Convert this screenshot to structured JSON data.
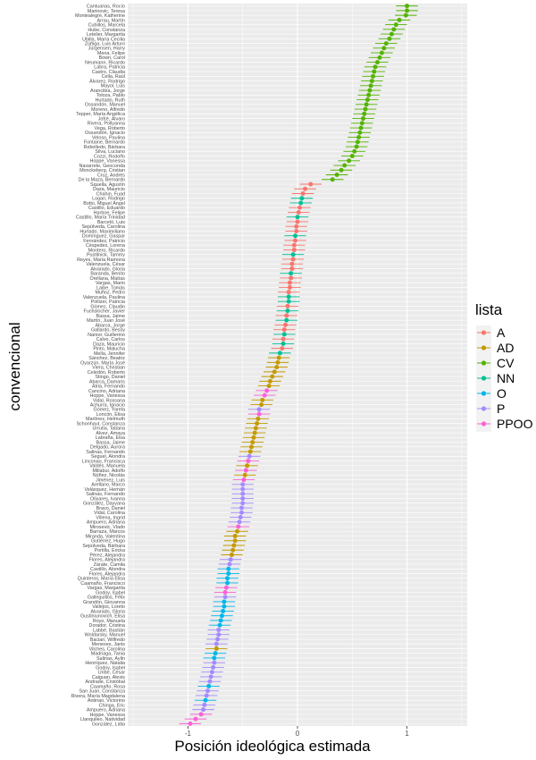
{
  "chart_data": {
    "type": "scatter",
    "xlabel": "Posición ideológica estimada",
    "ylabel": "convencional",
    "xlim": [
      -1.55,
      1.55
    ],
    "xticks": [
      -1,
      0,
      1
    ],
    "grid": true,
    "legend": {
      "title": "lista",
      "placement": "right"
    },
    "series": [
      {
        "name": "A",
        "color": "#F8766D"
      },
      {
        "name": "AD",
        "color": "#C49A00"
      },
      {
        "name": "CV",
        "color": "#53B400"
      },
      {
        "name": "NN",
        "color": "#00C094"
      },
      {
        "name": "O",
        "color": "#00B6EB"
      },
      {
        "name": "P",
        "color": "#A58AFF"
      },
      {
        "name": "PPOO",
        "color": "#FB61D7"
      }
    ],
    "points": [
      {
        "name": "Cantuarias, Rocío",
        "lista": "CV",
        "x": 1.0
      },
      {
        "name": "Marinovic, Teresa",
        "lista": "CV",
        "x": 1.0
      },
      {
        "name": "Montealegre, Katherine",
        "lista": "CV",
        "x": 0.99
      },
      {
        "name": "Arrau, Martín",
        "lista": "CV",
        "x": 0.93
      },
      {
        "name": "Cubillos, Marcela",
        "lista": "CV",
        "x": 0.9
      },
      {
        "name": "Hube, Constanza",
        "lista": "CV",
        "x": 0.88
      },
      {
        "name": "Letelier, Margarita",
        "lista": "CV",
        "x": 0.86
      },
      {
        "name": "Ubilla, María Cecilia",
        "lista": "CV",
        "x": 0.84
      },
      {
        "name": "Zúñiga, Luis Arturo",
        "lista": "CV",
        "x": 0.81
      },
      {
        "name": "Jürgensen, Harry",
        "lista": "CV",
        "x": 0.79
      },
      {
        "name": "Mena, Felipe",
        "lista": "CV",
        "x": 0.77
      },
      {
        "name": "Bown, Carol",
        "lista": "CV",
        "x": 0.75
      },
      {
        "name": "Neumann, Ricardo",
        "lista": "CV",
        "x": 0.73
      },
      {
        "name": "Labra, Patricia",
        "lista": "CV",
        "x": 0.71
      },
      {
        "name": "Castro, Claudia",
        "lista": "CV",
        "x": 0.7
      },
      {
        "name": "Cella, Raúl",
        "lista": "CV",
        "x": 0.69
      },
      {
        "name": "Álvarez, Rodrigo",
        "lista": "CV",
        "x": 0.68
      },
      {
        "name": "Mayol, Luis",
        "lista": "CV",
        "x": 0.67
      },
      {
        "name": "Arancibia, Jorge",
        "lista": "CV",
        "x": 0.66
      },
      {
        "name": "Toloza, Pablo",
        "lista": "CV",
        "x": 0.65
      },
      {
        "name": "Hurtado, Ruth",
        "lista": "CV",
        "x": 0.64
      },
      {
        "name": "Ossandón, Manuel",
        "lista": "CV",
        "x": 0.63
      },
      {
        "name": "Moreno, Alfredo",
        "lista": "CV",
        "x": 0.62
      },
      {
        "name": "Tepper, María Angélica",
        "lista": "CV",
        "x": 0.61
      },
      {
        "name": "Jofré, Álvaro",
        "lista": "CV",
        "x": 0.6
      },
      {
        "name": "Rivera, Pollyanna",
        "lista": "CV",
        "x": 0.59
      },
      {
        "name": "Vega, Roberto",
        "lista": "CV",
        "x": 0.58
      },
      {
        "name": "Ossandón, Ignacio",
        "lista": "CV",
        "x": 0.57
      },
      {
        "name": "Veloso, Paulina",
        "lista": "CV",
        "x": 0.56
      },
      {
        "name": "Fontaine, Bernardo",
        "lista": "CV",
        "x": 0.55
      },
      {
        "name": "Rebolledo, Bárbara",
        "lista": "CV",
        "x": 0.54
      },
      {
        "name": "Silva, Luciano",
        "lista": "CV",
        "x": 0.52
      },
      {
        "name": "Cozzi, Rodolfo",
        "lista": "CV",
        "x": 0.5
      },
      {
        "name": "Hoppe, Vanessa",
        "lista": "CV",
        "x": 0.47
      },
      {
        "name": "Navarrete, Geoconda",
        "lista": "CV",
        "x": 0.43
      },
      {
        "name": "Monckeberg, Cristian",
        "lista": "CV",
        "x": 0.4
      },
      {
        "name": "Cruz, Andrés",
        "lista": "CV",
        "x": 0.36
      },
      {
        "name": "De la Maza, Bernardo",
        "lista": "CV",
        "x": 0.32
      },
      {
        "name": "Squella, Agustín",
        "lista": "A",
        "x": 0.12
      },
      {
        "name": "Daza, Mauricio",
        "lista": "A",
        "x": 0.07
      },
      {
        "name": "Chahin, Fuad",
        "lista": "A",
        "x": 0.05
      },
      {
        "name": "Logan, Rodrigo",
        "lista": "NN",
        "x": 0.04
      },
      {
        "name": "Botto, Miguel Ángel",
        "lista": "NN",
        "x": 0.03
      },
      {
        "name": "Castillo, Eduardo",
        "lista": "A",
        "x": 0.02
      },
      {
        "name": "Harboe, Felipe",
        "lista": "A",
        "x": 0.01
      },
      {
        "name": "Castillo, María Trinidad",
        "lista": "NN",
        "x": 0.0
      },
      {
        "name": "Barceló, Luis",
        "lista": "A",
        "x": 0.0
      },
      {
        "name": "Sepúlveda, Carolina",
        "lista": "A",
        "x": -0.01
      },
      {
        "name": "Hurtado, Maximiliano",
        "lista": "A",
        "x": -0.01
      },
      {
        "name": "Domínguez, Gaspar",
        "lista": "NN",
        "x": -0.02
      },
      {
        "name": "Fernández, Patricio",
        "lista": "A",
        "x": -0.02
      },
      {
        "name": "Céspedes, Lorena",
        "lista": "A",
        "x": -0.03
      },
      {
        "name": "Montero, Ricardo",
        "lista": "A",
        "x": -0.03
      },
      {
        "name": "Pustilnick, Tammy",
        "lista": "NN",
        "x": -0.04
      },
      {
        "name": "Reyes, María Ramona",
        "lista": "A",
        "x": -0.04
      },
      {
        "name": "Valenzuela, César",
        "lista": "A",
        "x": -0.05
      },
      {
        "name": "Alvarado, Gloria",
        "lista": "A",
        "x": -0.05
      },
      {
        "name": "Baranda, Benito",
        "lista": "NN",
        "x": -0.06
      },
      {
        "name": "Orellana, Matías",
        "lista": "A",
        "x": -0.06
      },
      {
        "name": "Vargas, Mario",
        "lista": "A",
        "x": -0.07
      },
      {
        "name": "Laibe, Tomás",
        "lista": "A",
        "x": -0.07
      },
      {
        "name": "Muñoz, Pedro",
        "lista": "A",
        "x": -0.08
      },
      {
        "name": "Valenzuela, Paulina",
        "lista": "NN",
        "x": -0.08
      },
      {
        "name": "Pollizer, Patricia",
        "lista": "NN",
        "x": -0.08
      },
      {
        "name": "Gómez, Claudio",
        "lista": "A",
        "x": -0.09
      },
      {
        "name": "Fuchslocher, Javier",
        "lista": "NN",
        "x": -0.09
      },
      {
        "name": "Bassa, Jaime",
        "lista": "A",
        "x": -0.1
      },
      {
        "name": "Martín, Juan José",
        "lista": "NN",
        "x": -0.1
      },
      {
        "name": "Abarca, Jorge",
        "lista": "A",
        "x": -0.11
      },
      {
        "name": "Gallardo, Bessy",
        "lista": "A",
        "x": -0.12
      },
      {
        "name": "Namor, Guillermo",
        "lista": "NN",
        "x": -0.12
      },
      {
        "name": "Calvo, Carlos",
        "lista": "A",
        "x": -0.13
      },
      {
        "name": "Daza, Mauricio",
        "lista": "NN",
        "x": -0.13
      },
      {
        "name": "Pinto, Malucha",
        "lista": "A",
        "x": -0.14
      },
      {
        "name": "Mella, Jennifer",
        "lista": "NN",
        "x": -0.16
      },
      {
        "name": "Sánchez, Beatriz",
        "lista": "AD",
        "x": -0.17
      },
      {
        "name": "Oyarzún, María José",
        "lista": "AD",
        "x": -0.18
      },
      {
        "name": "Viera, Christian",
        "lista": "AD",
        "x": -0.19
      },
      {
        "name": "Celedón, Roberto",
        "lista": "AD",
        "x": -0.21
      },
      {
        "name": "Stingo, Daniel",
        "lista": "AD",
        "x": -0.23
      },
      {
        "name": "Abarca, Damaris",
        "lista": "AD",
        "x": -0.25
      },
      {
        "name": "Atria, Fernando",
        "lista": "AD",
        "x": -0.26
      },
      {
        "name": "Cancino, Adriana",
        "lista": "PPOO",
        "x": -0.28
      },
      {
        "name": "Hoppe, Vanessa",
        "lista": "PPOO",
        "x": -0.3
      },
      {
        "name": "Vidal, Rossana",
        "lista": "AD",
        "x": -0.32
      },
      {
        "name": "Achurra, Ignacio",
        "lista": "AD",
        "x": -0.33
      },
      {
        "name": "Gómez, Yarela",
        "lista": "P",
        "x": -0.35
      },
      {
        "name": "Loncón, Elisa",
        "lista": "PPOO",
        "x": -0.35
      },
      {
        "name": "Martínez, Helmuth",
        "lista": "AD",
        "x": -0.36
      },
      {
        "name": "Schonhaut, Constanza",
        "lista": "AD",
        "x": -0.37
      },
      {
        "name": "Urrutia, Tatiana",
        "lista": "AD",
        "x": -0.38
      },
      {
        "name": "Alvez, Amaya",
        "lista": "AD",
        "x": -0.39
      },
      {
        "name": "Labraña, Elsa",
        "lista": "AD",
        "x": -0.4
      },
      {
        "name": "Bassa, Jaime",
        "lista": "AD",
        "x": -0.41
      },
      {
        "name": "Delgado, Aurora",
        "lista": "AD",
        "x": -0.42
      },
      {
        "name": "Salinas, Fernando",
        "lista": "AD",
        "x": -0.43
      },
      {
        "name": "Seguel, Alondra",
        "lista": "P",
        "x": -0.44
      },
      {
        "name": "Linconao, Francisca",
        "lista": "PPOO",
        "x": -0.45
      },
      {
        "name": "Valdés, Manuela",
        "lista": "AD",
        "x": -0.46
      },
      {
        "name": "Millabur, Adolfo",
        "lista": "PPOO",
        "x": -0.47
      },
      {
        "name": "Núñez, Nicolás",
        "lista": "AD",
        "x": -0.48
      },
      {
        "name": "Jiménez, Luis",
        "lista": "PPOO",
        "x": -0.49
      },
      {
        "name": "Arellano, Marco",
        "lista": "P",
        "x": -0.5
      },
      {
        "name": "Velásquez, Hernán",
        "lista": "P",
        "x": -0.5
      },
      {
        "name": "Salinas, Fernando",
        "lista": "P",
        "x": -0.5
      },
      {
        "name": "Olivares, Ivanna",
        "lista": "P",
        "x": -0.5
      },
      {
        "name": "González, Dayyana",
        "lista": "P",
        "x": -0.5
      },
      {
        "name": "Bravo, Daniel",
        "lista": "P",
        "x": -0.51
      },
      {
        "name": "Vidal, Carolina",
        "lista": "P",
        "x": -0.51
      },
      {
        "name": "Villena, Ingrid",
        "lista": "P",
        "x": -0.52
      },
      {
        "name": "Ampuero, Adriana",
        "lista": "P",
        "x": -0.53
      },
      {
        "name": "Mirosevic, Vlado",
        "lista": "PPOO",
        "x": -0.54
      },
      {
        "name": "Barraza, Marcos",
        "lista": "AD",
        "x": -0.55
      },
      {
        "name": "Miranda, Valentina",
        "lista": "AD",
        "x": -0.57
      },
      {
        "name": "Gutiérrez, Hugo",
        "lista": "AD",
        "x": -0.57
      },
      {
        "name": "Sepúlveda, Bárbara",
        "lista": "AD",
        "x": -0.58
      },
      {
        "name": "Portilla, Ericka",
        "lista": "AD",
        "x": -0.59
      },
      {
        "name": "Pérez, Alejandra",
        "lista": "AD",
        "x": -0.6
      },
      {
        "name": "Flores, Alejandra",
        "lista": "P",
        "x": -0.61
      },
      {
        "name": "Zárate, Camila",
        "lista": "P",
        "x": -0.62
      },
      {
        "name": "Castillo, Alondra",
        "lista": "O",
        "x": -0.63
      },
      {
        "name": "Flores, Alejandra",
        "lista": "O",
        "x": -0.63
      },
      {
        "name": "Quinteros, María Elisa",
        "lista": "O",
        "x": -0.64
      },
      {
        "name": "Caamaño, Francisco",
        "lista": "O",
        "x": -0.64
      },
      {
        "name": "Vargas, Margarita",
        "lista": "PPOO",
        "x": -0.65
      },
      {
        "name": "Godoy, Isabel",
        "lista": "PPOO",
        "x": -0.66
      },
      {
        "name": "Galleguillos, Félix",
        "lista": "P",
        "x": -0.66
      },
      {
        "name": "Grandón, Giovanna",
        "lista": "O",
        "x": -0.67
      },
      {
        "name": "Vallejos, Loreto",
        "lista": "O",
        "x": -0.67
      },
      {
        "name": "Alvarado, Gloria",
        "lista": "O",
        "x": -0.68
      },
      {
        "name": "Gustiniunovich, Elisa",
        "lista": "O",
        "x": -0.69
      },
      {
        "name": "Royo, Manuela",
        "lista": "O",
        "x": -0.7
      },
      {
        "name": "Dorador, Cristina",
        "lista": "O",
        "x": -0.71
      },
      {
        "name": "Labbé, Bastián",
        "lista": "P",
        "x": -0.72
      },
      {
        "name": "Woldarsky, Manuel",
        "lista": "P",
        "x": -0.72
      },
      {
        "name": "Bacian, Wilfredo",
        "lista": "P",
        "x": -0.73
      },
      {
        "name": "Meneses, Janis",
        "lista": "P",
        "x": -0.74
      },
      {
        "name": "Vilches, Carolina",
        "lista": "AD",
        "x": -0.74
      },
      {
        "name": "Madriaga, Tania",
        "lista": "O",
        "x": -0.75
      },
      {
        "name": "Salinas, Aylin",
        "lista": "O",
        "x": -0.76
      },
      {
        "name": "Henríquez, Natalia",
        "lista": "P",
        "x": -0.76
      },
      {
        "name": "Godoy, Isabel",
        "lista": "P",
        "x": -0.77
      },
      {
        "name": "Uribe, César",
        "lista": "P",
        "x": -0.78
      },
      {
        "name": "Caiguan, Alexis",
        "lista": "P",
        "x": -0.79
      },
      {
        "name": "Andrade, Cristóbal",
        "lista": "P",
        "x": -0.8
      },
      {
        "name": "Caamaño, Rosa",
        "lista": "O",
        "x": -0.81
      },
      {
        "name": "San Juan, Constanza",
        "lista": "P",
        "x": -0.82
      },
      {
        "name": "Rivera, María Magdalena",
        "lista": "P",
        "x": -0.83
      },
      {
        "name": "Antinao, Victorino",
        "lista": "O",
        "x": -0.84
      },
      {
        "name": "Chinga, Eric",
        "lista": "P",
        "x": -0.85
      },
      {
        "name": "Ampuero, Adriana",
        "lista": "P",
        "x": -0.86
      },
      {
        "name": "Hoppe, Vanessa",
        "lista": "PPOO",
        "x": -0.88
      },
      {
        "name": "Llanquileo, Natividad",
        "lista": "PPOO",
        "x": -0.93
      },
      {
        "name": "González, Lidia",
        "lista": "PPOO",
        "x": -0.98
      }
    ]
  }
}
